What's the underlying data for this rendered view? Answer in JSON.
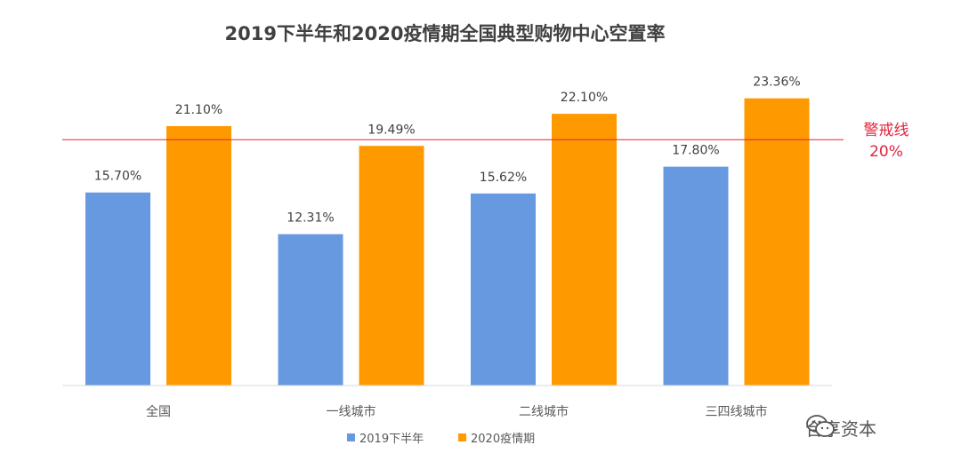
{
  "chart_data": {
    "type": "bar",
    "title": "2019下半年和2020疫情期全国典型购物中心空置率",
    "categories": [
      "全国",
      "一线城市",
      "二线城市",
      "三四线城市"
    ],
    "series": [
      {
        "name": "2019下半年",
        "color": "#6699E0",
        "values": [
          15.7,
          12.31,
          15.62,
          17.8
        ],
        "labels": [
          "15.70%",
          "12.31%",
          "15.62%",
          "17.80%"
        ]
      },
      {
        "name": "2020疫情期",
        "color": "#FF9900",
        "values": [
          21.1,
          19.49,
          22.1,
          23.36
        ],
        "labels": [
          "21.10%",
          "19.49%",
          "22.10%",
          "23.36%"
        ]
      }
    ],
    "ylim": [
      0,
      26.3
    ],
    "reference_line": {
      "value": 20,
      "label_line1": "警戒线",
      "label_line2": "20%",
      "color": "#E0233C"
    },
    "legend": "bottom-center",
    "grid": false
  },
  "watermark": {
    "text": "合享资本"
  }
}
